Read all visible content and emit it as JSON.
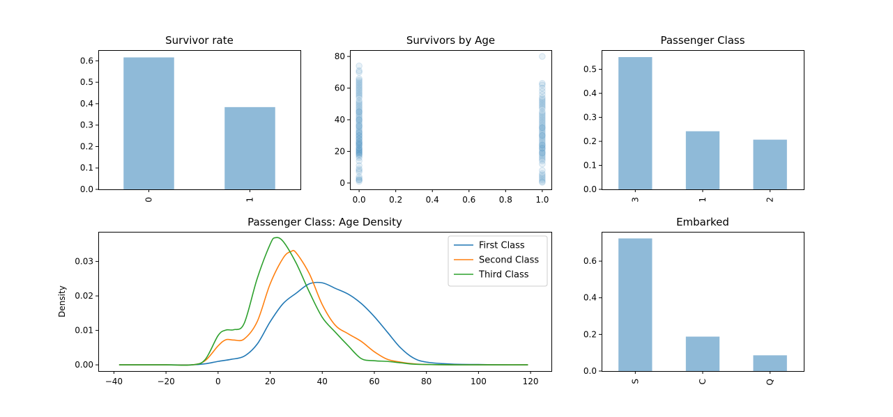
{
  "chart_data": [
    {
      "id": "survivor-rate",
      "type": "bar",
      "title": "Survivor rate",
      "categories": [
        "0",
        "1"
      ],
      "values": [
        0.616,
        0.384
      ],
      "ylim": [
        0,
        0.65
      ],
      "yticks": [
        0.0,
        0.1,
        0.2,
        0.3,
        0.4,
        0.5,
        0.6
      ],
      "xlabel": "",
      "ylabel": "",
      "grid": false,
      "color": "#8fbad8"
    },
    {
      "id": "survivors-by-age",
      "type": "scatter",
      "title": "Survivors by Age",
      "xlim": [
        -0.05,
        1.05
      ],
      "ylim": [
        -4,
        84
      ],
      "xticks": [
        0.0,
        0.2,
        0.4,
        0.6,
        0.8,
        1.0
      ],
      "yticks": [
        0,
        20,
        40,
        60,
        80
      ],
      "xlabel": "",
      "ylabel": "",
      "grid": false,
      "color": "#1f77b4",
      "alpha": 0.1,
      "series": [
        {
          "x": 0,
          "ages": [
            1,
            2,
            2,
            3,
            4,
            7,
            8,
            9,
            11,
            14,
            16,
            17,
            18,
            18,
            19,
            19,
            20,
            20,
            21,
            21,
            22,
            22,
            23,
            24,
            24,
            25,
            25,
            26,
            26,
            27,
            28,
            28,
            29,
            30,
            30,
            31,
            32,
            32,
            33,
            34,
            35,
            36,
            36,
            37,
            38,
            39,
            40,
            40,
            41,
            42,
            43,
            44,
            45,
            45,
            46,
            47,
            48,
            49,
            50,
            51,
            52,
            54,
            55,
            56,
            57,
            58,
            59,
            60,
            61,
            62,
            63,
            64,
            65,
            66,
            70,
            71,
            74
          ]
        },
        {
          "x": 1,
          "ages": [
            0.4,
            1,
            2,
            3,
            4,
            5,
            6,
            8,
            12,
            14,
            15,
            16,
            17,
            18,
            19,
            19,
            20,
            21,
            22,
            22,
            23,
            24,
            24,
            25,
            26,
            27,
            28,
            29,
            30,
            30,
            31,
            32,
            33,
            34,
            35,
            35,
            36,
            37,
            38,
            39,
            40,
            41,
            42,
            43,
            44,
            45,
            47,
            48,
            49,
            50,
            51,
            52,
            53,
            54,
            56,
            58,
            60,
            62,
            63,
            80
          ]
        }
      ]
    },
    {
      "id": "passenger-class",
      "type": "bar",
      "title": "Passenger Class",
      "categories": [
        "3",
        "1",
        "2"
      ],
      "values": [
        0.551,
        0.242,
        0.207
      ],
      "ylim": [
        0,
        0.58
      ],
      "yticks": [
        0.0,
        0.1,
        0.2,
        0.3,
        0.4,
        0.5
      ],
      "xlabel": "",
      "ylabel": "",
      "grid": false,
      "color": "#8fbad8"
    },
    {
      "id": "age-density",
      "type": "line",
      "title": "Passenger Class: Age Density",
      "xlabel": "",
      "ylabel": "Density",
      "xlim": [
        -46,
        128
      ],
      "ylim": [
        -0.0018,
        0.0386
      ],
      "xticks": [
        -40,
        -20,
        0,
        20,
        40,
        60,
        80,
        100,
        120
      ],
      "yticks": [
        0.0,
        0.01,
        0.02,
        0.03
      ],
      "ytick_labels": [
        "0.00",
        "0.01",
        "0.02",
        "0.03"
      ],
      "grid": false,
      "legend": "top-right",
      "series": [
        {
          "name": "First Class",
          "color": "#1f77b4",
          "x": [
            -38,
            -20,
            -10,
            -5,
            0,
            5,
            10,
            15,
            20,
            25,
            30,
            35,
            40,
            45,
            50,
            55,
            60,
            65,
            70,
            75,
            80,
            90,
            100,
            110,
            119
          ],
          "y": [
            0,
            0,
            0,
            0.0003,
            0.001,
            0.0016,
            0.0025,
            0.006,
            0.0125,
            0.0178,
            0.0208,
            0.0235,
            0.0238,
            0.0222,
            0.0205,
            0.0178,
            0.014,
            0.0095,
            0.005,
            0.002,
            0.0008,
            0.0002,
            0.0001,
            0,
            0
          ]
        },
        {
          "name": "Second Class",
          "color": "#ff7f0e",
          "x": [
            -38,
            -20,
            -10,
            -5,
            0,
            3,
            6,
            10,
            15,
            20,
            25,
            28,
            30,
            35,
            40,
            45,
            50,
            55,
            60,
            65,
            70,
            75,
            80,
            90,
            100,
            119
          ],
          "y": [
            0,
            0,
            0,
            0.0012,
            0.0055,
            0.0073,
            0.0072,
            0.0075,
            0.0125,
            0.0235,
            0.031,
            0.0329,
            0.0325,
            0.0265,
            0.0175,
            0.0115,
            0.009,
            0.0068,
            0.0038,
            0.0016,
            0.0008,
            0.0003,
            0.0001,
            0,
            0,
            0
          ]
        },
        {
          "name": "Third Class",
          "color": "#2ca02c",
          "x": [
            -38,
            -20,
            -10,
            -5,
            0,
            3,
            6,
            10,
            15,
            20,
            22,
            25,
            30,
            35,
            40,
            45,
            50,
            55,
            60,
            65,
            70,
            75,
            80,
            90,
            100,
            119
          ],
          "y": [
            0,
            0,
            0,
            0.0015,
            0.0085,
            0.0101,
            0.0102,
            0.012,
            0.025,
            0.035,
            0.0369,
            0.0358,
            0.0295,
            0.0212,
            0.0138,
            0.0095,
            0.0055,
            0.0018,
            0.0012,
            0.001,
            0.0006,
            0.0002,
            0.0001,
            0,
            0,
            0
          ]
        }
      ]
    },
    {
      "id": "embarked",
      "type": "bar",
      "title": "Embarked",
      "categories": [
        "S",
        "C",
        "Q"
      ],
      "values": [
        0.724,
        0.188,
        0.086
      ],
      "ylim": [
        0,
        0.76
      ],
      "yticks": [
        0.0,
        0.2,
        0.4,
        0.6
      ],
      "ytick_labels": [
        "0.0",
        "0.2",
        "0.4",
        "0.6"
      ],
      "xlabel": "",
      "ylabel": "",
      "grid": false,
      "color": "#8fbad8"
    }
  ]
}
